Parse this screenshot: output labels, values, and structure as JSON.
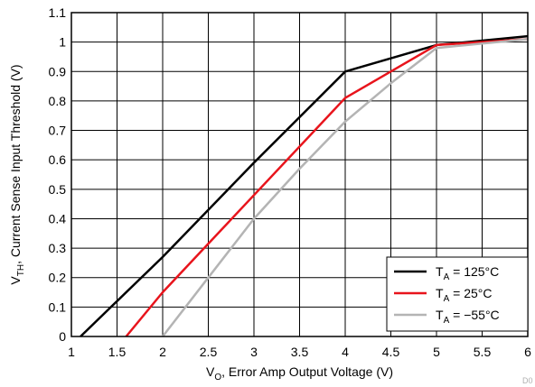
{
  "chart_data": {
    "type": "line",
    "xlabel": {
      "main": "V",
      "sub": "O",
      "rest": ", Error Amp Output Voltage (V)"
    },
    "ylabel": {
      "main": "V",
      "sub": "TH",
      "rest": ", Current Sense Input Threshold (V)"
    },
    "xlim": [
      1,
      6
    ],
    "ylim": [
      0,
      1.1
    ],
    "x_ticks": [
      "1",
      "1.5",
      "2",
      "2.5",
      "3",
      "3.5",
      "4",
      "4.5",
      "5",
      "5.5",
      "6"
    ],
    "y_ticks": [
      "0",
      "0.1",
      "0.2",
      "0.3",
      "0.4",
      "0.5",
      "0.6",
      "0.7",
      "0.8",
      "0.9",
      "1",
      "1.1"
    ],
    "grid": true,
    "legend_position": "bottom-right",
    "series": [
      {
        "name": {
          "main": "T",
          "sub": "A",
          "rest": " = 125°C"
        },
        "color": "#000000",
        "points": [
          [
            1.1,
            0
          ],
          [
            2.0,
            0.27
          ],
          [
            3.0,
            0.59
          ],
          [
            4.0,
            0.9
          ],
          [
            5.0,
            0.99
          ],
          [
            6.0,
            1.02
          ]
        ]
      },
      {
        "name": {
          "main": "T",
          "sub": "A",
          "rest": " = 25°C"
        },
        "color": "#e8141c",
        "points": [
          [
            1.6,
            0
          ],
          [
            2.0,
            0.15
          ],
          [
            3.0,
            0.48
          ],
          [
            4.0,
            0.81
          ],
          [
            5.0,
            0.99
          ],
          [
            6.0,
            1.01
          ]
        ]
      },
      {
        "name": {
          "main": "T",
          "sub": "A",
          "rest": " = −55°C"
        },
        "color": "#b4b4b4",
        "points": [
          [
            2.0,
            0
          ],
          [
            2.5,
            0.2
          ],
          [
            3.0,
            0.4
          ],
          [
            3.5,
            0.57
          ],
          [
            4.0,
            0.73
          ],
          [
            4.5,
            0.86
          ],
          [
            5.0,
            0.98
          ],
          [
            6.0,
            1.01
          ]
        ]
      }
    ],
    "watermark": "D0"
  }
}
